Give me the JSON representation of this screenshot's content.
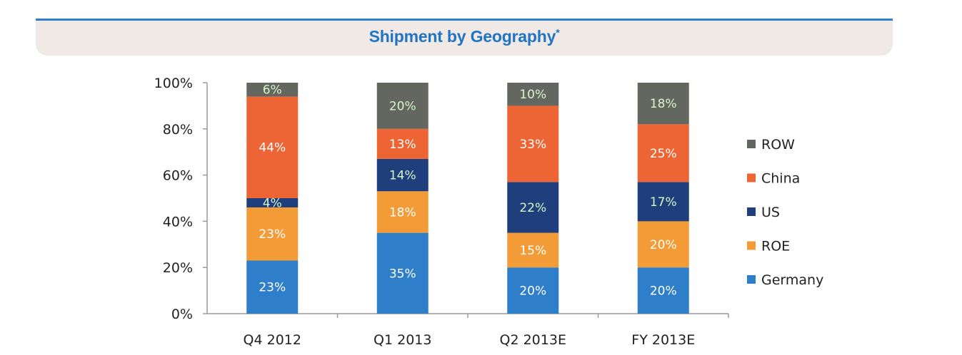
{
  "header": {
    "title": "Shipment by Geography",
    "title_mark": "*"
  },
  "chart_data": {
    "type": "bar",
    "stacked": true,
    "categories": [
      "Q4 2012",
      "Q1 2013",
      "Q2 2013E",
      "FY 2013E"
    ],
    "ylim": [
      0,
      100
    ],
    "y_ticks": [
      "0%",
      "20%",
      "40%",
      "60%",
      "80%",
      "100%"
    ],
    "series": [
      {
        "name": "Germany",
        "color": "#2f7ec9",
        "values": [
          23,
          35,
          20,
          20
        ],
        "labels": [
          "23%",
          "35%",
          "20%",
          "20%"
        ]
      },
      {
        "name": "ROE",
        "color": "#f39b37",
        "values": [
          23,
          18,
          15,
          20
        ],
        "labels": [
          "23%",
          "18%",
          "15%",
          "20%"
        ]
      },
      {
        "name": "US",
        "color": "#1f3e7c",
        "values": [
          4,
          14,
          22,
          17
        ],
        "labels": [
          "4%",
          "14%",
          "22%",
          "17%"
        ]
      },
      {
        "name": "China",
        "color": "#ee6535",
        "values": [
          44,
          13,
          33,
          25
        ],
        "labels": [
          "44%",
          "13%",
          "33%",
          "25%"
        ]
      },
      {
        "name": "ROW",
        "color": "#646760",
        "values": [
          6,
          20,
          10,
          18
        ],
        "labels": [
          "6%",
          "20%",
          "10%",
          "18%"
        ]
      }
    ],
    "legend_order": [
      "ROW",
      "China",
      "US",
      "ROE",
      "Germany"
    ],
    "legend_position": "right",
    "grid": false
  }
}
